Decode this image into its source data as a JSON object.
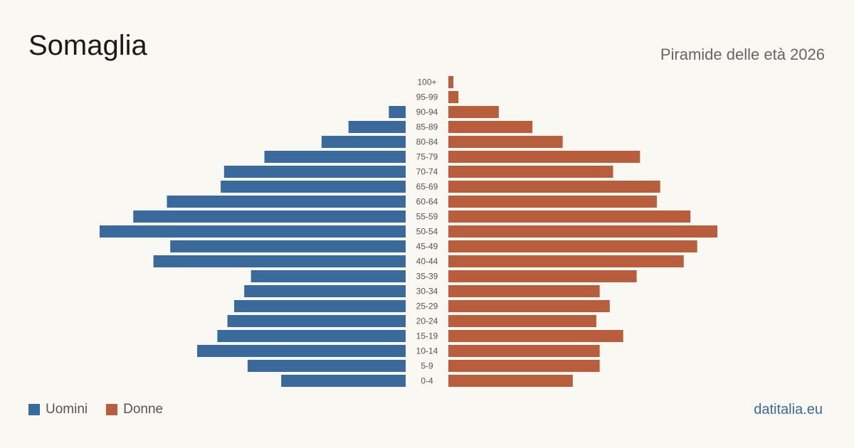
{
  "header": {
    "title": "Somaglia",
    "subtitle": "Piramide delle età 2026"
  },
  "legend": {
    "male_label": "Uomini",
    "female_label": "Donne"
  },
  "source": "datitalia.eu",
  "colors": {
    "male": "#3a6a9b",
    "female": "#b95e3d",
    "background": "#faf8f3"
  },
  "chart_data": {
    "type": "bar",
    "orientation": "horizontal-population-pyramid",
    "categories": [
      "100+",
      "95-99",
      "90-94",
      "85-89",
      "80-84",
      "75-79",
      "70-74",
      "65-69",
      "60-64",
      "55-59",
      "50-54",
      "45-49",
      "40-44",
      "35-39",
      "30-34",
      "25-29",
      "20-24",
      "15-19",
      "10-14",
      "5-9",
      "0-4"
    ],
    "series": [
      {
        "name": "Uomini",
        "values": [
          0,
          0,
          5,
          17,
          25,
          42,
          54,
          55,
          71,
          81,
          91,
          70,
          75,
          46,
          48,
          51,
          53,
          56,
          62,
          47,
          37
        ]
      },
      {
        "name": "Donne",
        "values": [
          1.5,
          3,
          15,
          25,
          34,
          57,
          49,
          63,
          62,
          72,
          80,
          74,
          70,
          56,
          45,
          48,
          44,
          52,
          45,
          45,
          37
        ]
      }
    ],
    "legend": "bottom-left",
    "grid": false
  }
}
